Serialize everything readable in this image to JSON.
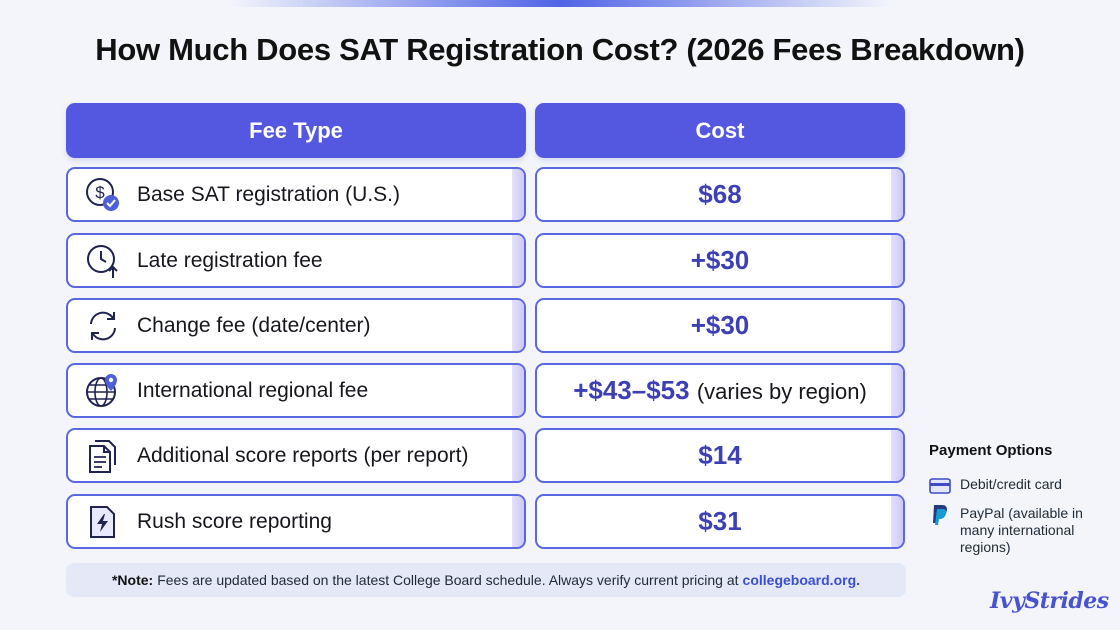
{
  "title": "How Much Does SAT Registration Cost? (2026 Fees Breakdown)",
  "table": {
    "headers": {
      "fee_type": "Fee Type",
      "cost": "Cost"
    },
    "rows": [
      {
        "icon": "dollar-check-icon",
        "fee": "Base SAT registration (U.S.)",
        "cost": "$68",
        "cost_suffix": ""
      },
      {
        "icon": "clock-arrow-icon",
        "fee": "Late registration fee",
        "cost": "+$30",
        "cost_suffix": ""
      },
      {
        "icon": "refresh-icon",
        "fee": "Change fee (date/center)",
        "cost": "+$30",
        "cost_suffix": ""
      },
      {
        "icon": "globe-pin-icon",
        "fee": "International regional fee",
        "cost": "+$43–$53",
        "cost_suffix": "(varies by region)"
      },
      {
        "icon": "documents-icon",
        "fee": "Additional score reports (per report)",
        "cost": "$14",
        "cost_suffix": ""
      },
      {
        "icon": "lightning-file-icon",
        "fee": "Rush score reporting",
        "cost": "$31",
        "cost_suffix": ""
      }
    ]
  },
  "note": {
    "label": "*Note:",
    "text": "Fees are updated based on the latest College Board schedule. Always verify current pricing at",
    "link": "collegeboard.org."
  },
  "payment": {
    "title": "Payment Options",
    "items": [
      {
        "icon": "credit-card-icon",
        "label": "Debit/credit card"
      },
      {
        "icon": "paypal-icon",
        "label": "PayPal (available in many international regions)"
      }
    ]
  },
  "brand": "IvyStrides",
  "colors": {
    "accent": "#5458e0",
    "border": "#5b66e2",
    "cost_text": "#3d3fb5",
    "background": "#f3f5fb"
  }
}
